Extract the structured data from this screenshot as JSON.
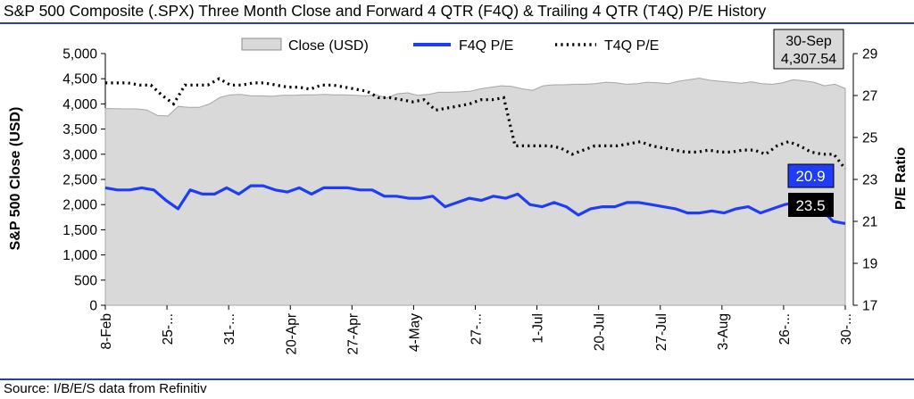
{
  "title": "S&P 500 Composite (.SPX) Three Month Close and Forward 4 QTR (F4Q) & Trailing 4 QTR (T4Q) P/E History",
  "source": "Source: I/B/E/S data from Refinitiv",
  "chart_data": {
    "type": "area",
    "title": "S&P 500 Composite (.SPX) Three Month Close and Forward 4 QTR (F4Q) & Trailing 4 QTR (T4Q) P/E History",
    "ylabel": "S&P 500 Close (USD)",
    "y2label": "P/E Ratio",
    "ylim": [
      0,
      5000
    ],
    "y2lim": [
      17,
      29
    ],
    "y_ticks": [
      "0",
      "500",
      "1,000",
      "1,500",
      "2,000",
      "2,500",
      "3,000",
      "3,500",
      "4,000",
      "4,500",
      "5,000"
    ],
    "y2_ticks": [
      "17",
      "19",
      "21",
      "23",
      "25",
      "27",
      "29"
    ],
    "x_tick_labels": [
      "8-Feb",
      "25-...",
      "31-...",
      "20-Apr",
      "27-Apr",
      "4-May",
      "27-...",
      "1-Jul",
      "20-Jul",
      "27-Jul",
      "3-Aug",
      "26-...",
      "30-..."
    ],
    "legend": [
      "Close (USD)",
      "F4Q P/E",
      "T4Q P/E"
    ],
    "colors": {
      "close": "#d9d9d9",
      "f4q": "#1f3df5",
      "t4q": "#000000",
      "rule": "#2a3fa8"
    },
    "series": [
      {
        "name": "Close (USD)",
        "axis": "left",
        "values": [
          3910,
          3905,
          3900,
          3900,
          3880,
          3770,
          3760,
          3950,
          3930,
          3930,
          4000,
          4130,
          4180,
          4190,
          4160,
          4160,
          4150,
          4170,
          4170,
          4180,
          4180,
          4190,
          4180,
          4180,
          4170,
          4160,
          4180,
          4120,
          4200,
          4220,
          4170,
          4190,
          4230,
          4230,
          4240,
          4250,
          4300,
          4330,
          4360,
          4350,
          4300,
          4270,
          4360,
          4380,
          4380,
          4390,
          4390,
          4400,
          4430,
          4420,
          4390,
          4400,
          4430,
          4420,
          4400,
          4450,
          4480,
          4510,
          4470,
          4450,
          4430,
          4410,
          4440,
          4400,
          4390,
          4420,
          4480,
          4460,
          4430,
          4360,
          4390,
          4307.54
        ]
      },
      {
        "name": "F4Q P/E",
        "axis": "right",
        "values": [
          22.6,
          22.5,
          22.5,
          22.6,
          22.5,
          22.0,
          21.6,
          22.5,
          22.3,
          22.3,
          22.6,
          22.3,
          22.7,
          22.7,
          22.5,
          22.4,
          22.6,
          22.3,
          22.6,
          22.6,
          22.6,
          22.5,
          22.5,
          22.2,
          22.2,
          22.1,
          22.1,
          22.2,
          21.7,
          21.9,
          22.1,
          22.0,
          22.2,
          22.1,
          22.3,
          21.8,
          21.7,
          21.9,
          21.7,
          21.3,
          21.6,
          21.7,
          21.7,
          21.9,
          21.9,
          21.8,
          21.7,
          21.6,
          21.4,
          21.4,
          21.5,
          21.4,
          21.6,
          21.7,
          21.4,
          21.6,
          21.8,
          21.9,
          21.8,
          21.6,
          21.0,
          20.9
        ]
      },
      {
        "name": "T4Q P/E",
        "axis": "right",
        "values": [
          27.6,
          27.6,
          27.6,
          27.5,
          27.5,
          27.0,
          26.6,
          27.5,
          27.5,
          27.5,
          27.8,
          27.5,
          27.5,
          27.6,
          27.6,
          27.5,
          27.4,
          27.4,
          27.3,
          27.5,
          27.5,
          27.4,
          27.3,
          27.2,
          26.9,
          26.9,
          26.8,
          26.7,
          26.8,
          26.3,
          26.4,
          26.5,
          26.6,
          26.8,
          26.8,
          26.9,
          24.6,
          24.6,
          24.6,
          24.6,
          24.5,
          24.2,
          24.4,
          24.6,
          24.6,
          24.6,
          24.7,
          24.8,
          24.6,
          24.5,
          24.4,
          24.3,
          24.3,
          24.4,
          24.3,
          24.3,
          24.4,
          24.4,
          24.2,
          24.6,
          24.8,
          24.6,
          24.3,
          24.2,
          24.2,
          23.5
        ]
      }
    ],
    "callouts": [
      {
        "date": "30-Sep",
        "close": "4,307.54"
      },
      {
        "series": "F4Q P/E",
        "label": "20.9"
      },
      {
        "series": "T4Q P/E",
        "label": "23.5"
      }
    ],
    "grid": false,
    "legend_position": "top"
  }
}
